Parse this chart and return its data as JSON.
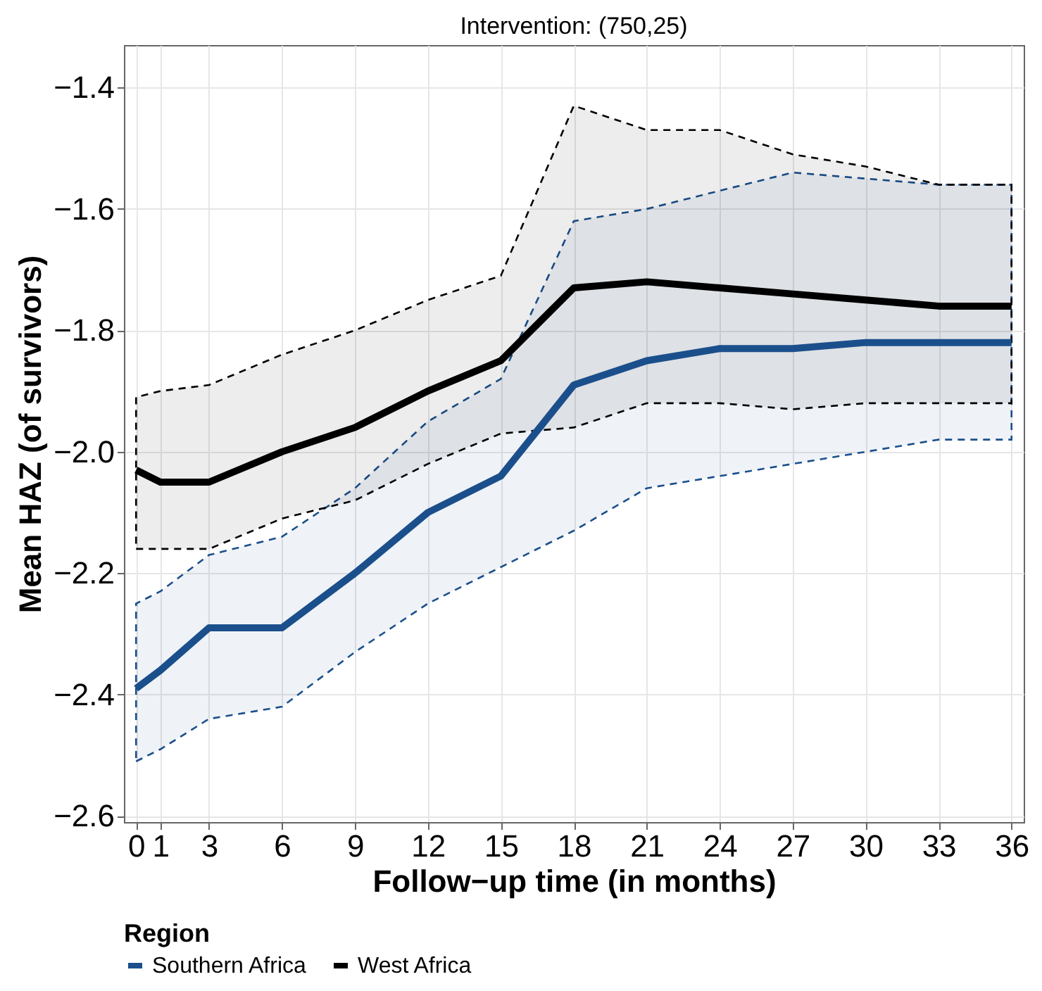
{
  "chart_data": {
    "type": "line",
    "title": "Intervention: (750,25)",
    "xlabel": "Follow−up time (in months)",
    "ylabel": "Mean HAZ (of survivors)",
    "legend_title": "Region",
    "legend": "bottom",
    "grid": true,
    "line_style": "solid",
    "x": [
      0,
      1,
      3,
      6,
      9,
      12,
      15,
      18,
      21,
      24,
      27,
      30,
      33,
      36
    ],
    "xlim": [
      -0.5,
      36.5
    ],
    "xticks": [
      0,
      1,
      3,
      6,
      9,
      12,
      15,
      18,
      21,
      24,
      27,
      30,
      33,
      36
    ],
    "ylim": [
      -2.61,
      -1.33
    ],
    "yticks": [
      -2.6,
      -2.4,
      -2.2,
      {
        "value": -2.0,
        "label": "−2.0"
      },
      -1.8,
      -1.6,
      -1.4
    ],
    "series": [
      {
        "name": "Southern Africa",
        "color": "#1b4f8c",
        "values": [
          -2.39,
          -2.36,
          -2.29,
          -2.29,
          -2.2,
          -2.1,
          -2.04,
          -1.89,
          -1.85,
          -1.83,
          -1.83,
          -1.82,
          -1.82,
          -1.82
        ],
        "lower": [
          -2.51,
          -2.49,
          -2.44,
          -2.42,
          -2.33,
          -2.25,
          -2.19,
          -2.13,
          -2.06,
          -2.04,
          -2.02,
          -2.0,
          -1.98,
          -1.98
        ],
        "upper": [
          -2.25,
          -2.23,
          -2.17,
          -2.14,
          -2.06,
          -1.95,
          -1.88,
          -1.62,
          -1.6,
          -1.57,
          -1.54,
          -1.55,
          -1.56,
          -1.56
        ]
      },
      {
        "name": "West Africa",
        "color": "#000000",
        "values": [
          -2.03,
          -2.05,
          -2.05,
          -2.0,
          -1.96,
          -1.9,
          -1.85,
          -1.73,
          -1.72,
          -1.73,
          -1.74,
          -1.75,
          -1.76,
          -1.76
        ],
        "lower": [
          -2.16,
          -2.16,
          -2.16,
          -2.11,
          -2.08,
          -2.02,
          -1.97,
          -1.96,
          -1.92,
          -1.92,
          -1.93,
          -1.92,
          -1.92,
          -1.92
        ],
        "upper": [
          -1.91,
          -1.9,
          -1.89,
          -1.84,
          -1.8,
          -1.75,
          -1.71,
          -1.43,
          -1.47,
          -1.47,
          -1.51,
          -1.53,
          -1.56,
          -1.56
        ]
      }
    ]
  }
}
